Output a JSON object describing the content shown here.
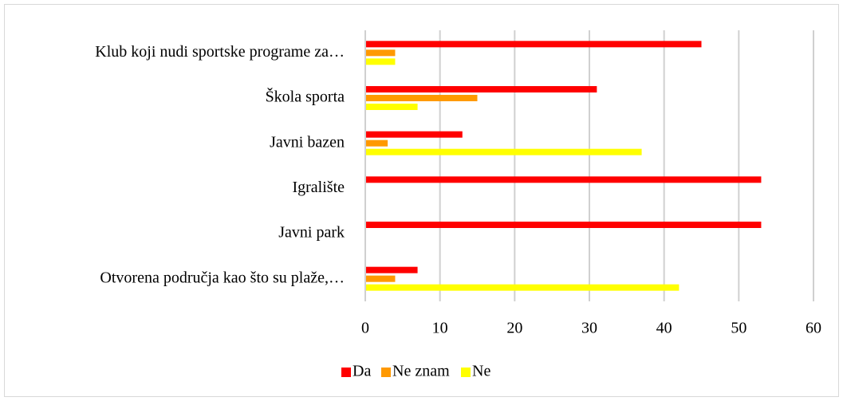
{
  "chart_data": {
    "type": "bar",
    "orientation": "horizontal",
    "categories": [
      "Klub koji nudi sportske programe za…",
      "Škola sporta",
      "Javni bazen",
      "Igralište",
      "Javni park",
      "Otvorena područja kao što su plaže,…"
    ],
    "series": [
      {
        "name": "Da",
        "color": "#ff0000",
        "values": [
          45,
          31,
          13,
          53,
          53,
          7
        ]
      },
      {
        "name": "Ne znam",
        "color": "#ff9900",
        "values": [
          4,
          15,
          3,
          0,
          0,
          4
        ]
      },
      {
        "name": "Ne",
        "color": "#ffff00",
        "values": [
          4,
          7,
          37,
          0,
          0,
          42
        ]
      }
    ],
    "xlim": [
      0,
      60
    ],
    "xticks": [
      0,
      10,
      20,
      30,
      40,
      50,
      60
    ],
    "grid": true,
    "legend": "bottom"
  }
}
